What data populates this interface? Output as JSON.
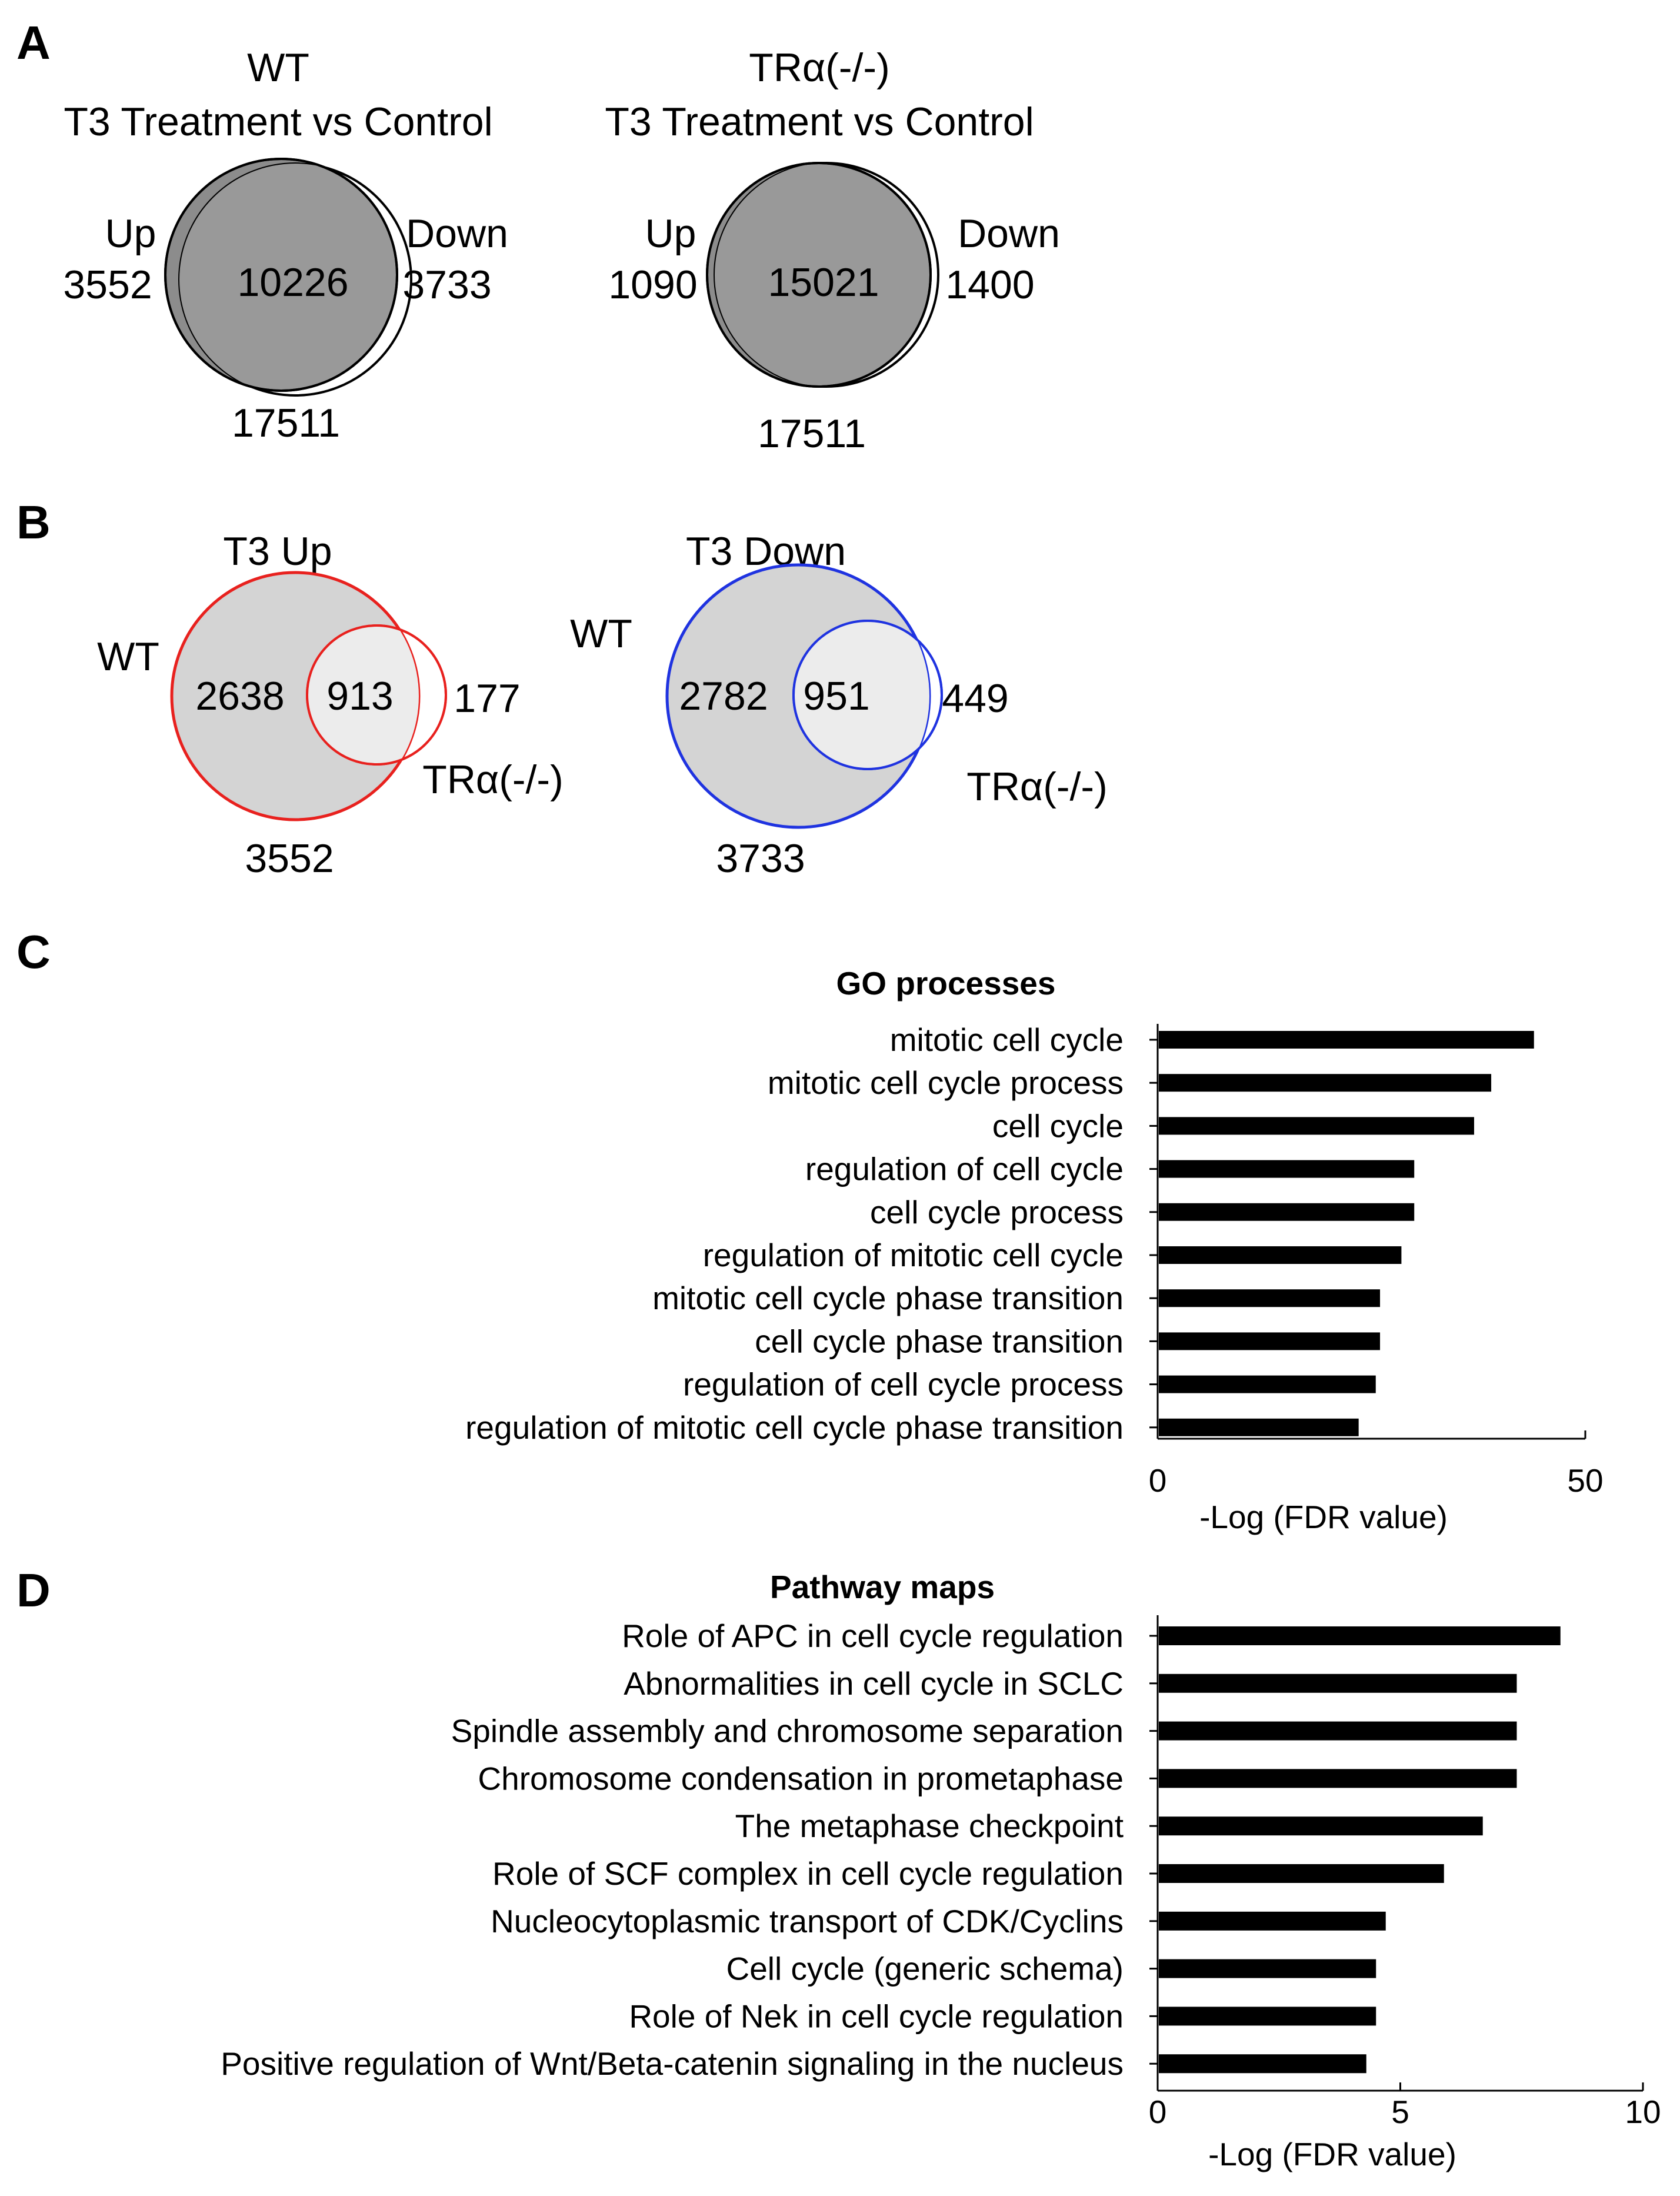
{
  "panel_a": {
    "letter": "A",
    "wt": {
      "title_line1": "WT",
      "title_line2": "T3 Treatment vs Control",
      "up_label": "Up",
      "up_count": "3552",
      "center_count": "10226",
      "down_label": "Down",
      "down_count": "3733",
      "total": "17511"
    },
    "ko": {
      "title_line1": "TRα(-/-)",
      "title_line2": "T3 Treatment vs Control",
      "up_label": "Up",
      "up_count": "1090",
      "center_count": "15021",
      "down_label": "Down",
      "down_count": "1400",
      "total": "17511"
    }
  },
  "panel_b": {
    "letter": "B",
    "up": {
      "title": "T3 Up",
      "wt_label": "WT",
      "wt_only": "2638",
      "overlap": "913",
      "ko_only": "177",
      "ko_label": "TRα(-/-)",
      "total": "3552",
      "color": "#e8211e"
    },
    "down": {
      "title": "T3 Down",
      "wt_label": "WT",
      "wt_only": "2782",
      "overlap": "951",
      "ko_only": "449",
      "ko_label": "TRα(-/-)",
      "total": "3733",
      "color": "#1f33e0"
    }
  },
  "chart_data": [
    {
      "panel": "C",
      "type": "bar",
      "orientation": "horizontal",
      "title": "GO processes",
      "xlabel": "-Log (FDR value)",
      "xlim": [
        0,
        50
      ],
      "xticks": [
        "0",
        "50"
      ],
      "categories": [
        "mitotic cell cycle",
        "mitotic cell cycle process",
        "cell cycle",
        "regulation of cell cycle",
        "cell cycle process",
        "regulation of mitotic cell cycle",
        "mitotic cell cycle phase transition",
        "cell cycle phase transition",
        "regulation of cell cycle process",
        "regulation of mitotic cell cycle phase transition"
      ],
      "values": [
        44,
        39,
        37,
        30,
        30,
        28.5,
        26,
        26,
        25.5,
        23.5
      ]
    },
    {
      "panel": "D",
      "type": "bar",
      "orientation": "horizontal",
      "title": "Pathway maps",
      "xlabel": "-Log (FDR value)",
      "xlim": [
        0,
        10
      ],
      "xticks": [
        "0",
        "5",
        "10"
      ],
      "categories": [
        "Role of APC in cell cycle regulation",
        "Abnormalities in cell cycle in SCLC",
        "Spindle assembly and chromosome separation",
        "Chromosome condensation in prometaphase",
        "The metaphase checkpoint",
        "Role of SCF complex in cell cycle regulation",
        "Nucleocytoplasmic transport of CDK/Cyclins",
        "Cell cycle (generic schema)",
        "Role of Nek in cell cycle regulation",
        "Positive regulation of Wnt/Beta-catenin signaling in the nucleus"
      ],
      "values": [
        8.3,
        7.4,
        7.4,
        7.4,
        6.7,
        5.9,
        4.7,
        4.5,
        4.5,
        4.3
      ]
    }
  ]
}
